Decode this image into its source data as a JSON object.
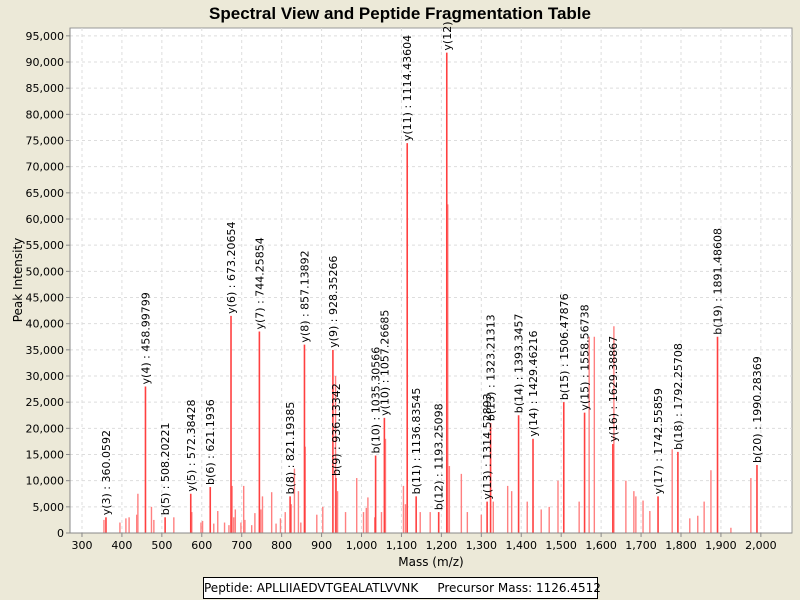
{
  "chart_data": {
    "type": "bar",
    "title": "Spectral View and Peptide Fragmentation Table",
    "xlabel": "Mass (m/z)",
    "ylabel": "Peak Intensity",
    "xlim": [
      270,
      2078
    ],
    "ylim": [
      0,
      96500
    ],
    "xticks": [
      300,
      400,
      500,
      600,
      700,
      800,
      900,
      1000,
      1100,
      1200,
      1300,
      1400,
      1500,
      1600,
      1700,
      1800,
      1900,
      2000
    ],
    "xtick_labels": [
      "300",
      "400",
      "500",
      "600",
      "700",
      "800",
      "900",
      "1,000",
      "1,100",
      "1,200",
      "1,300",
      "1,400",
      "1,500",
      "1,600",
      "1,700",
      "1,800",
      "1,900",
      "2,000"
    ],
    "yticks": [
      0,
      5000,
      10000,
      15000,
      20000,
      25000,
      30000,
      35000,
      40000,
      45000,
      50000,
      55000,
      60000,
      65000,
      70000,
      75000,
      80000,
      85000,
      90000,
      95000
    ],
    "ytick_labels": [
      "0",
      "5,000",
      "10,000",
      "15,000",
      "20,000",
      "25,000",
      "30,000",
      "35,000",
      "40,000",
      "45,000",
      "50,000",
      "55,000",
      "60,000",
      "65,000",
      "70,000",
      "75,000",
      "80,000",
      "85,000",
      "90,000",
      "95,000"
    ],
    "grid": true,
    "series_color": "#FF4040",
    "annotated_peaks": [
      {
        "mz": 360.0592,
        "intensity": 3000,
        "label": "y(3) : 360.0592"
      },
      {
        "mz": 458.99799,
        "intensity": 28000,
        "label": "y(4) : 458.99799"
      },
      {
        "mz": 508.20221,
        "intensity": 3000,
        "label": "b(5) : 508.20221"
      },
      {
        "mz": 572.38428,
        "intensity": 7500,
        "label": "y(5) : 572.38428"
      },
      {
        "mz": 621.1936,
        "intensity": 8800,
        "label": "b(6) : 621.1936"
      },
      {
        "mz": 673.20654,
        "intensity": 41500,
        "label": "y(6) : 673.20654"
      },
      {
        "mz": 744.25854,
        "intensity": 38500,
        "label": "y(7) : 744.25854"
      },
      {
        "mz": 821.19385,
        "intensity": 7000,
        "label": "b(8) : 821.19385"
      },
      {
        "mz": 857.13892,
        "intensity": 36000,
        "label": "y(8) : 857.13892"
      },
      {
        "mz": 928.35266,
        "intensity": 35000,
        "label": "y(9) : 928.35266"
      },
      {
        "mz": 936.13342,
        "intensity": 10500,
        "label": "b(9) : 936.13342"
      },
      {
        "mz": 1035.30566,
        "intensity": 14800,
        "label": "b(10) : 1035.30566"
      },
      {
        "mz": 1057.26685,
        "intensity": 22000,
        "label": "y(10) : 1057.26685"
      },
      {
        "mz": 1114.43604,
        "intensity": 74500,
        "label": "y(11) : 1114.43604"
      },
      {
        "mz": 1136.83545,
        "intensity": 7000,
        "label": "b(11) : 1136.83545"
      },
      {
        "mz": 1193.25098,
        "intensity": 4000,
        "label": "b(12) : 1193.25098"
      },
      {
        "mz": 1213.5,
        "intensity": 91800,
        "label": "y(12)"
      },
      {
        "mz": 1314.52893,
        "intensity": 6000,
        "label": "y(13) : 1314.52893"
      },
      {
        "mz": 1323.21313,
        "intensity": 21000,
        "label": "b(13) : 1323.21313"
      },
      {
        "mz": 1393.3457,
        "intensity": 22500,
        "label": "b(14) : 1393.3457"
      },
      {
        "mz": 1429.46216,
        "intensity": 18000,
        "label": "y(14) : 1429.46216"
      },
      {
        "mz": 1506.47876,
        "intensity": 25000,
        "label": "b(15) : 1506.47876"
      },
      {
        "mz": 1558.56738,
        "intensity": 23000,
        "label": "y(15) : 1558.56738"
      },
      {
        "mz": 1629.38867,
        "intensity": 17000,
        "label": "y(16) : 1629.38867"
      },
      {
        "mz": 1742.55859,
        "intensity": 7000,
        "label": "y(17) : 1742.55859"
      },
      {
        "mz": 1792.25708,
        "intensity": 15500,
        "label": "b(18) : 1792.25708"
      },
      {
        "mz": 1891.48608,
        "intensity": 37500,
        "label": "b(19) : 1891.48608"
      },
      {
        "mz": 1990.28369,
        "intensity": 13000,
        "label": "b(20) : 1990.28369"
      }
    ],
    "other_peaks": [
      [
        355,
        2500
      ],
      [
        395,
        2000
      ],
      [
        410,
        2800
      ],
      [
        418,
        3000
      ],
      [
        437,
        3500
      ],
      [
        440,
        7500
      ],
      [
        474,
        5000
      ],
      [
        480,
        2500
      ],
      [
        530,
        3000
      ],
      [
        575,
        4000
      ],
      [
        598,
        2000
      ],
      [
        602,
        2300
      ],
      [
        630,
        1800
      ],
      [
        640,
        4200
      ],
      [
        657,
        2000
      ],
      [
        668,
        1500
      ],
      [
        676,
        9000
      ],
      [
        680,
        3000
      ],
      [
        684,
        4500
      ],
      [
        698,
        2000
      ],
      [
        705,
        9000
      ],
      [
        708,
        2500
      ],
      [
        725,
        1500
      ],
      [
        733,
        3800
      ],
      [
        748,
        4500
      ],
      [
        752,
        7000
      ],
      [
        775,
        7800
      ],
      [
        786,
        1800
      ],
      [
        797,
        2800
      ],
      [
        809,
        4000
      ],
      [
        824,
        5500
      ],
      [
        832,
        12300
      ],
      [
        842,
        8000
      ],
      [
        848,
        2000
      ],
      [
        859,
        16500
      ],
      [
        888,
        3500
      ],
      [
        903,
        5000
      ],
      [
        935,
        30000
      ],
      [
        940,
        8000
      ],
      [
        960,
        4000
      ],
      [
        988,
        10500
      ],
      [
        1005,
        4000
      ],
      [
        1012,
        4800
      ],
      [
        1016,
        6800
      ],
      [
        1033,
        3000
      ],
      [
        1050,
        4000
      ],
      [
        1060,
        18000
      ],
      [
        1105,
        9000
      ],
      [
        1110,
        5500
      ],
      [
        1147,
        4000
      ],
      [
        1172,
        4000
      ],
      [
        1216,
        62800
      ],
      [
        1220,
        12800
      ],
      [
        1250,
        11300
      ],
      [
        1265,
        4000
      ],
      [
        1300,
        3500
      ],
      [
        1330,
        6000
      ],
      [
        1366,
        9000
      ],
      [
        1376,
        8000
      ],
      [
        1415,
        6000
      ],
      [
        1450,
        4500
      ],
      [
        1470,
        5000
      ],
      [
        1492,
        10000
      ],
      [
        1545,
        6000
      ],
      [
        1570,
        37500
      ],
      [
        1583,
        37500
      ],
      [
        1632,
        39500
      ],
      [
        1662,
        10000
      ],
      [
        1682,
        8000
      ],
      [
        1687,
        7000
      ],
      [
        1705,
        6200
      ],
      [
        1722,
        4200
      ],
      [
        1778,
        16000
      ],
      [
        1822,
        2800
      ],
      [
        1842,
        3300
      ],
      [
        1858,
        6000
      ],
      [
        1875,
        12000
      ],
      [
        1925,
        1000
      ],
      [
        1975,
        10500
      ]
    ],
    "legend": {
      "peptide": "Peptide: APLLIIAEDVTGEALATLVVNK",
      "precursor": "Precursor Mass: 1126.4512"
    }
  }
}
